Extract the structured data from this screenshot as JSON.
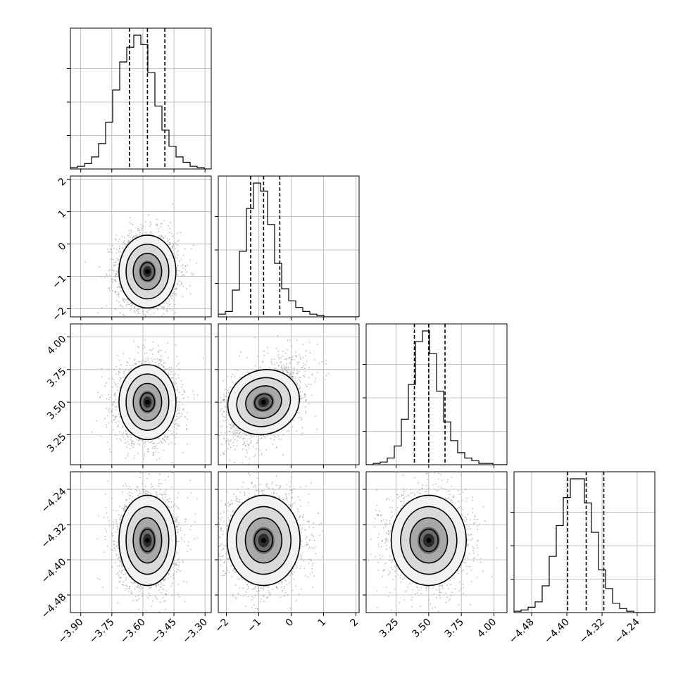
{
  "chart_data": {
    "type": "corner",
    "dimensions": 4,
    "panels_present": "lower-triangle-and-diagonal",
    "grid": true,
    "colors": {
      "line": "#000000",
      "grid": "#b0b0b0",
      "scatter": "#888888"
    },
    "parameters": [
      {
        "index": 0,
        "range": [
          -3.95,
          -3.27
        ],
        "ticks": [
          -3.9,
          -3.75,
          -3.6,
          -3.45,
          -3.3
        ],
        "tick_labels": [
          "−3.90",
          "−3.75",
          "−3.60",
          "−3.45",
          "−3.30"
        ],
        "quantiles": [
          -3.665,
          -3.578,
          -3.494
        ],
        "mean": -3.578,
        "sd": 0.055
      },
      {
        "index": 1,
        "range": [
          -2.25,
          2.1
        ],
        "ticks": [
          -2,
          -1,
          0,
          1,
          2
        ],
        "tick_labels": [
          "−2",
          "−1",
          "0",
          "1",
          "2"
        ],
        "quantiles": [
          -1.25,
          -0.85,
          -0.35
        ],
        "mean": -0.8,
        "sd": 0.45
      },
      {
        "index": 2,
        "range": [
          3.02,
          4.1
        ],
        "ticks": [
          3.25,
          3.5,
          3.75,
          4.0
        ],
        "tick_labels": [
          "3.25",
          "3.50",
          "3.75",
          "4.00"
        ],
        "quantiles": [
          3.39,
          3.5,
          3.625
        ],
        "mean": 3.505,
        "sd": 0.115
      },
      {
        "index": 3,
        "range": [
          -4.52,
          -4.2
        ],
        "ticks": [
          -4.48,
          -4.4,
          -4.32,
          -4.24
        ],
        "tick_labels": [
          "−4.48",
          "−4.40",
          "−4.32",
          "−4.24"
        ],
        "quantiles": [
          -4.398,
          -4.356,
          -4.316
        ],
        "mean": -4.356,
        "sd": 0.041
      }
    ],
    "histograms": [
      {
        "param": 0,
        "bins": 20,
        "range": [
          -3.95,
          -3.27
        ],
        "counts": [
          1,
          2,
          4,
          9,
          19,
          35,
          59,
          80,
          91,
          100,
          93,
          72,
          47,
          29,
          17,
          9,
          5,
          2,
          1,
          0
        ]
      },
      {
        "param": 1,
        "bins": 20,
        "range": [
          -2.25,
          2.1
        ],
        "counts": [
          2,
          4,
          20,
          49,
          81,
          100,
          94,
          69,
          40,
          21,
          12,
          7,
          4,
          2,
          1,
          0,
          0,
          0,
          0,
          0
        ]
      },
      {
        "param": 2,
        "bins": 20,
        "range": [
          3.02,
          4.1
        ],
        "counts": [
          0,
          1,
          2,
          5,
          14,
          34,
          60,
          92,
          100,
          83,
          55,
          32,
          18,
          9,
          5,
          3,
          1,
          1,
          0,
          0
        ]
      },
      {
        "param": 3,
        "bins": 20,
        "range": [
          -4.52,
          -4.2
        ],
        "counts": [
          1,
          2,
          4,
          8,
          20,
          42,
          65,
          86,
          100,
          100,
          82,
          60,
          32,
          18,
          7,
          3,
          1,
          0,
          0,
          0
        ]
      }
    ],
    "scatter_panels": [
      {
        "x_param": 0,
        "y_param": 1,
        "center": [
          -3.578,
          -0.85
        ],
        "correlation": 0.0,
        "contour_levels_sigma": [
          0.5,
          1.0,
          1.5,
          2.0
        ]
      },
      {
        "x_param": 0,
        "y_param": 2,
        "center": [
          -3.578,
          3.5
        ],
        "correlation": 0.0,
        "contour_levels_sigma": [
          0.5,
          1.0,
          1.5,
          2.0
        ]
      },
      {
        "x_param": 1,
        "y_param": 2,
        "center": [
          -0.85,
          3.5
        ],
        "correlation": 0.45,
        "contour_levels_sigma": [
          0.5,
          1.0,
          1.5,
          2.0
        ]
      },
      {
        "x_param": 0,
        "y_param": 3,
        "center": [
          -3.578,
          -4.356
        ],
        "correlation": 0.0,
        "contour_levels_sigma": [
          0.5,
          1.0,
          1.5,
          2.0
        ]
      },
      {
        "x_param": 1,
        "y_param": 3,
        "center": [
          -0.85,
          -4.356
        ],
        "correlation": 0.0,
        "contour_levels_sigma": [
          0.5,
          1.0,
          1.5,
          2.0
        ]
      },
      {
        "x_param": 2,
        "y_param": 3,
        "center": [
          3.5,
          -4.356
        ],
        "correlation": 0.0,
        "contour_levels_sigma": [
          0.5,
          1.0,
          1.5,
          2.0
        ]
      }
    ]
  }
}
